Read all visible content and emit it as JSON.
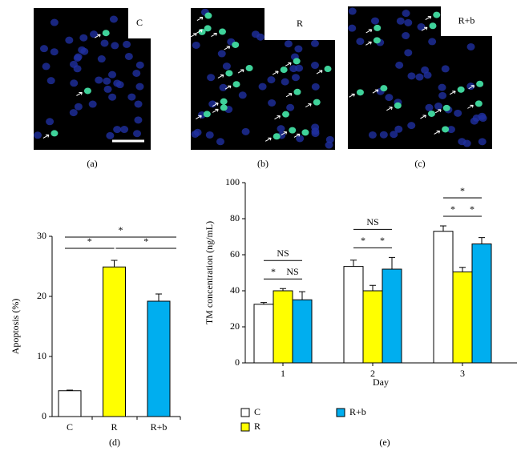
{
  "images": [
    {
      "label": "C",
      "panel_label": "(a)"
    },
    {
      "label": "R",
      "panel_label": "(b)"
    },
    {
      "label": "R+b",
      "panel_label": "(c)"
    }
  ],
  "chart_data": [
    {
      "type": "bar",
      "panel_label": "(d)",
      "ylabel": "Apoptosis (%)",
      "categories": [
        "C",
        "R",
        "R+b"
      ],
      "values": [
        4.3,
        24.9,
        19.2
      ],
      "errors": [
        0.1,
        1.1,
        1.2
      ],
      "colors": [
        "#ffffff",
        "#ffff00",
        "#00aeef"
      ],
      "ylim": [
        0,
        30
      ],
      "yticks": [
        0,
        10,
        20,
        30
      ],
      "annotations": [
        "*",
        "*",
        "*"
      ]
    },
    {
      "type": "grouped_bar",
      "panel_label": "(e)",
      "xlabel": "Day",
      "ylabel": "TM concentration (ng/mL)",
      "categories": [
        "1",
        "2",
        "3"
      ],
      "series": [
        {
          "name": "C",
          "color": "#ffffff",
          "values": [
            32.5,
            53.5,
            73
          ],
          "errors": [
            1,
            3.5,
            3
          ]
        },
        {
          "name": "R",
          "color": "#ffff00",
          "values": [
            40,
            40,
            50.5
          ],
          "errors": [
            1.2,
            3,
            2.5
          ]
        },
        {
          "name": "R+b",
          "color": "#00aeef",
          "values": [
            35,
            52,
            66
          ],
          "errors": [
            4.5,
            6.5,
            3.5
          ]
        }
      ],
      "ylim": [
        0,
        100
      ],
      "yticks": [
        0,
        20,
        40,
        60,
        80,
        100
      ],
      "annotations": [
        [
          "NS",
          "*",
          "NS"
        ],
        [
          "NS",
          "*",
          "*"
        ],
        [
          "*",
          "*",
          "*"
        ]
      ]
    }
  ]
}
